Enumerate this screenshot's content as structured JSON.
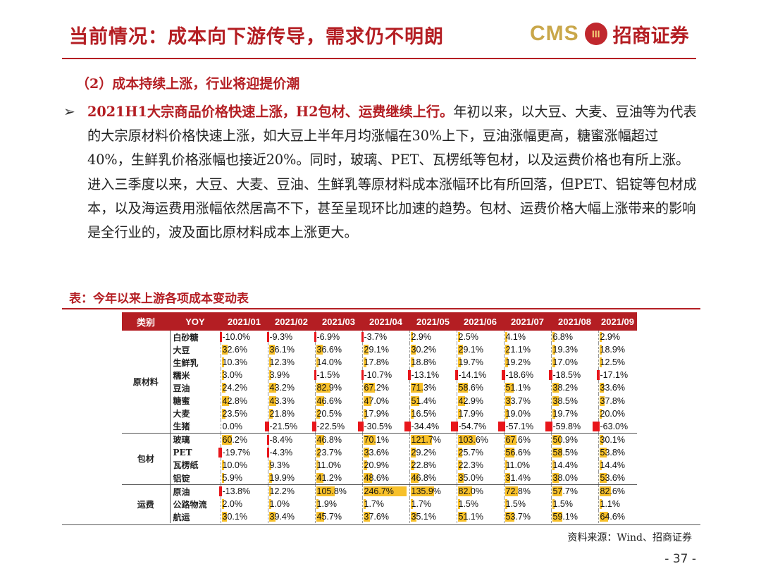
{
  "header": {
    "title": "当前情况：成本向下游传导，需求仍不明朗",
    "logo_text": "CMS",
    "logo_mark": "III",
    "logo_name": "招商证券"
  },
  "section": {
    "subtitle": "（2）成本持续上涨，行业将迎提价潮",
    "bullet": "➢",
    "lead": "2021H1大宗商品价格快速上涨，H2包材、运费继续上行。",
    "body": "年初以来，以大豆、大麦、豆油等为代表的大宗原材料价格快速上涨，如大豆上半年月均涨幅在30%上下，豆油涨幅更高，糖蜜涨幅超过40%，生鲜乳价格涨幅也接近20%。同时，玻璃、PET、瓦楞纸等包材，以及运费价格也有所上涨。进入三季度以来，大豆、大麦、豆油、生鲜乳等原材料成本涨幅环比有所回落，但PET、铝锭等包材成本，以及海运费用涨幅依然居高不下，甚至呈现环比加速的趋势。包材、运费价格大幅上涨带来的影响是全行业的，波及面比原材料成本上涨更大。"
  },
  "table_title": "表：今年以来上游各项成本变动表",
  "source": "资料来源：Wind、招商证券",
  "page_number": "- 37 -",
  "colors": {
    "positive": "#f7c02a",
    "negative": "#e8161b",
    "header": "#b41e23"
  },
  "chart_data": {
    "type": "table",
    "title": "表：今年以来上游各项成本变动表",
    "columns": [
      "类别",
      "YOY",
      "2021/01",
      "2021/02",
      "2021/03",
      "2021/04",
      "2021/05",
      "2021/06",
      "2021/07",
      "2021/08",
      "2021/09"
    ],
    "groups": [
      {
        "name": "原材料",
        "rows": [
          {
            "item": "白砂糖",
            "values": [
              -10.0,
              -9.3,
              -6.9,
              -3.7,
              2.9,
              2.5,
              4.1,
              6.8,
              2.9
            ]
          },
          {
            "item": "大豆",
            "values": [
              32.6,
              36.1,
              36.6,
              29.1,
              30.2,
              29.1,
              21.1,
              19.3,
              18.9
            ]
          },
          {
            "item": "生鲜乳",
            "values": [
              10.3,
              12.3,
              14.0,
              17.8,
              18.8,
              19.7,
              19.2,
              17.0,
              12.5
            ]
          },
          {
            "item": "糯米",
            "values": [
              3.0,
              3.9,
              -1.5,
              -10.7,
              -13.1,
              -14.1,
              -18.6,
              -18.5,
              -17.1
            ]
          },
          {
            "item": "豆油",
            "values": [
              24.2,
              43.2,
              82.9,
              67.2,
              71.3,
              58.6,
              51.1,
              38.2,
              33.6
            ]
          },
          {
            "item": "糖蜜",
            "values": [
              42.8,
              43.3,
              46.6,
              47.0,
              51.4,
              42.9,
              33.7,
              38.5,
              37.8
            ]
          },
          {
            "item": "大麦",
            "values": [
              23.5,
              21.8,
              20.5,
              17.9,
              16.5,
              17.9,
              19.0,
              19.7,
              20.0
            ]
          },
          {
            "item": "生猪",
            "values": [
              0.0,
              -21.5,
              -22.5,
              -30.5,
              -34.4,
              -54.7,
              -57.1,
              -59.8,
              -63.0
            ]
          }
        ]
      },
      {
        "name": "包材",
        "rows": [
          {
            "item": "玻璃",
            "values": [
              60.2,
              -8.4,
              46.8,
              70.1,
              121.7,
              103.6,
              67.6,
              50.9,
              30.1
            ]
          },
          {
            "item": "PET",
            "values": [
              -19.7,
              -4.3,
              23.7,
              33.6,
              29.2,
              25.7,
              56.6,
              58.5,
              53.8
            ]
          },
          {
            "item": "瓦楞纸",
            "values": [
              10.0,
              9.3,
              11.0,
              20.9,
              22.8,
              22.3,
              11.0,
              14.4,
              14.4
            ]
          },
          {
            "item": "铝锭",
            "values": [
              5.9,
              19.9,
              41.2,
              48.6,
              46.8,
              35.0,
              31.4,
              38.0,
              53.6
            ]
          }
        ]
      },
      {
        "name": "运费",
        "rows": [
          {
            "item": "原油",
            "values": [
              -13.8,
              12.2,
              105.8,
              246.7,
              135.9,
              82.0,
              72.8,
              57.7,
              82.6
            ]
          },
          {
            "item": "公路物流",
            "values": [
              2.0,
              1.0,
              1.9,
              1.7,
              1.7,
              1.5,
              1.5,
              1.5,
              1.1
            ]
          },
          {
            "item": "航运",
            "values": [
              30.1,
              39.4,
              45.7,
              37.6,
              35.1,
              51.1,
              53.7,
              59.1,
              64.6
            ]
          }
        ]
      }
    ]
  }
}
